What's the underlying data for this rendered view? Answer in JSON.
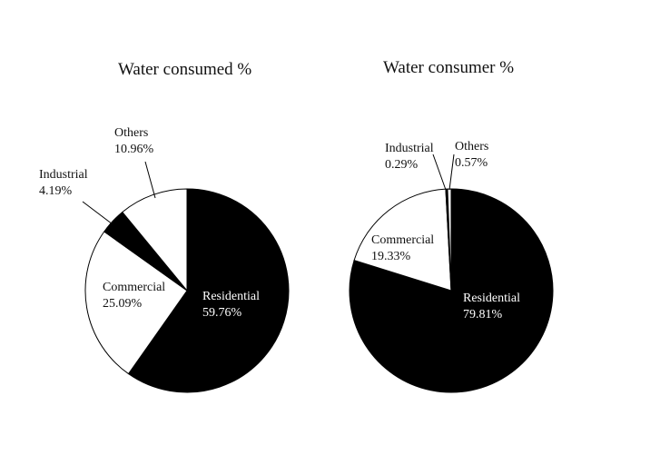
{
  "chart_data": [
    {
      "type": "pie",
      "title": "Water consumed %",
      "slices": [
        {
          "name": "Residential",
          "value": 59.76,
          "label": "59.76%",
          "color": "#000000"
        },
        {
          "name": "Commercial",
          "value": 25.09,
          "label": "25.09%",
          "color": "#ffffff"
        },
        {
          "name": "Industrial",
          "value": 4.19,
          "label": "4.19%",
          "color": "#000000"
        },
        {
          "name": "Others",
          "value": 10.96,
          "label": "10.96%",
          "color": "#ffffff"
        }
      ]
    },
    {
      "type": "pie",
      "title": "Water consumer %",
      "slices": [
        {
          "name": "Residential",
          "value": 79.81,
          "label": "79.81%",
          "color": "#000000"
        },
        {
          "name": "Commercial",
          "value": 19.33,
          "label": "19.33%",
          "color": "#ffffff"
        },
        {
          "name": "Industrial",
          "value": 0.29,
          "label": "0.29%",
          "color": "#000000"
        },
        {
          "name": "Others",
          "value": 0.57,
          "label": "0.57%",
          "color": "#ffffff"
        }
      ]
    }
  ]
}
